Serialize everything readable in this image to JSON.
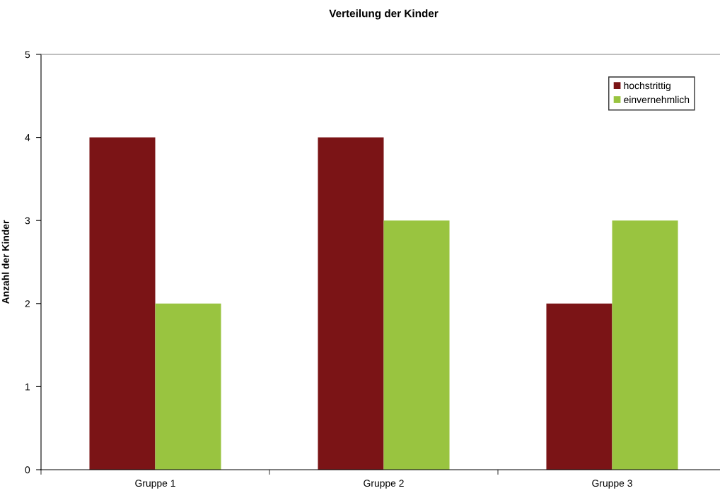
{
  "chart_data": {
    "type": "bar",
    "title": "Verteilung der Kinder",
    "ylabel": "Anzahl der Kinder",
    "categories": [
      "Gruppe 1",
      "Gruppe 2",
      "Gruppe 3"
    ],
    "series": [
      {
        "name": "hochstrittig",
        "color": "#7b1416",
        "values": [
          4,
          4,
          2
        ]
      },
      {
        "name": "einvernehmlich",
        "color": "#99c440",
        "values": [
          2,
          3,
          3
        ]
      }
    ],
    "ylim": [
      0,
      5
    ],
    "yticks": [
      0,
      1,
      2,
      3,
      4,
      5
    ],
    "legend": "top right",
    "grid": false
  }
}
